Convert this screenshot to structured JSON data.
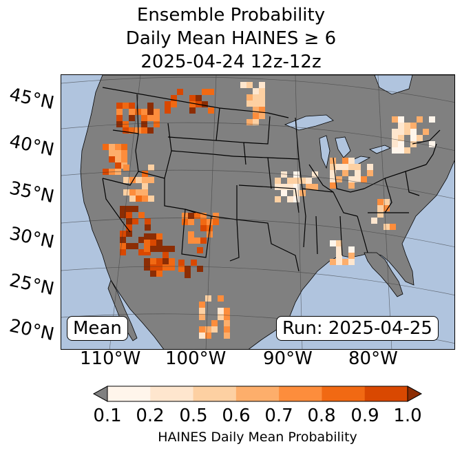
{
  "title": {
    "line1": "Ensemble Probability",
    "line2": "Daily Mean HAINES ≥ 6",
    "line3": "2025-04-24 12z-12z"
  },
  "map": {
    "left_box": "Mean",
    "right_box": "Run: 2025-04-25",
    "latitude_labels": [
      "45°N",
      "40°N",
      "35°N",
      "30°N",
      "25°N",
      "20°N"
    ],
    "longitude_labels": [
      "110°W",
      "100°W",
      "90°W",
      "80°W"
    ],
    "colors": {
      "ocean": "#b0c4de",
      "land": "#808080",
      "borders": "#000000"
    },
    "icons": [
      "us-state-boundaries",
      "great-lakes",
      "graticule"
    ]
  },
  "colorbar": {
    "ticks": [
      "0.1",
      "0.2",
      "0.5",
      "0.6",
      "0.7",
      "0.8",
      "0.9",
      "1.0"
    ],
    "colors": [
      "#fff5eb",
      "#fee6ce",
      "#fdd0a2",
      "#fdae6b",
      "#fd8d3c",
      "#f16913",
      "#d94801",
      "#8c2d04"
    ],
    "under_color": "#808080",
    "label": "HAINES Daily Mean Probability"
  }
}
